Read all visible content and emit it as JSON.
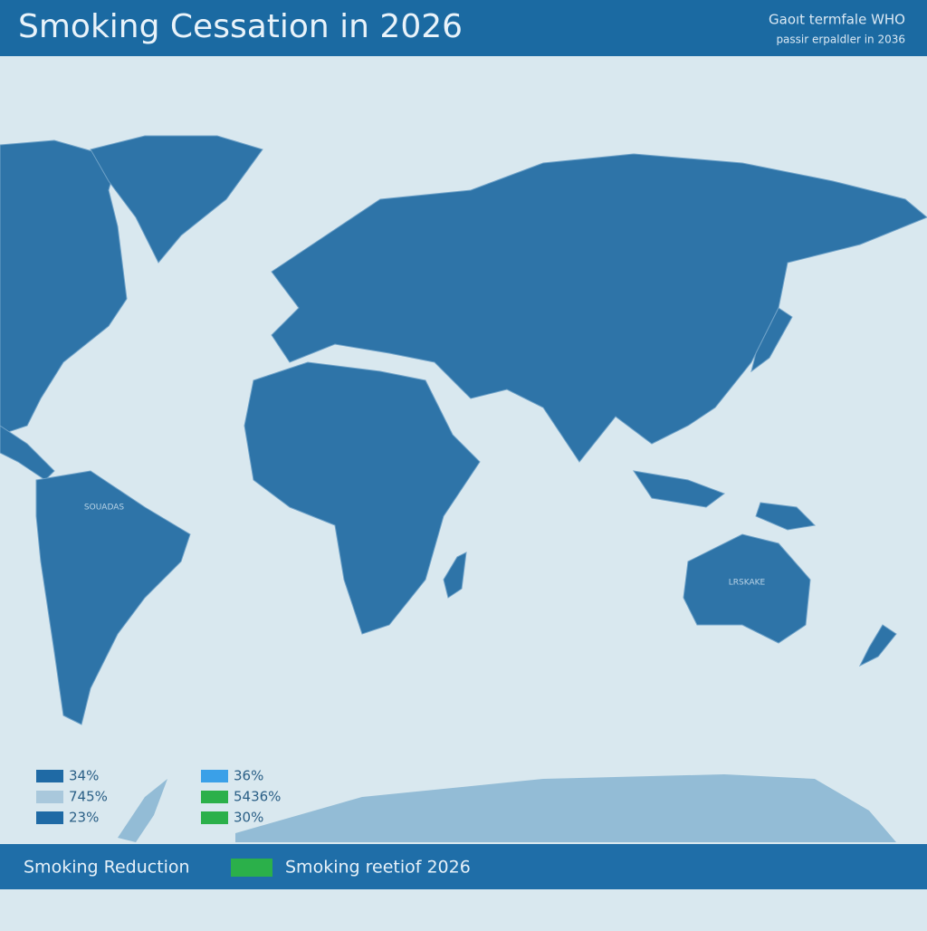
{
  "header": {
    "title": "Smoking Cessation in 2026",
    "source": "Gaoıt termfale WHO",
    "subtitle": "passir erpaldler in 2036"
  },
  "map_labels": [
    "SOUADAS",
    "LRSKAKE"
  ],
  "legend": {
    "left": [
      {
        "label": "34%",
        "color": "#1f6aa5"
      },
      {
        "label": "745%",
        "color": "#a9c8dc"
      },
      {
        "label": "23%",
        "color": "#1f6aa5"
      }
    ],
    "right": [
      {
        "label": "36%",
        "color": "#3aa0e8"
      },
      {
        "label": "5436%",
        "color": "#2bb04a"
      },
      {
        "label": "30%",
        "color": "#2bb04a"
      }
    ]
  },
  "footer": {
    "left": "Smoking Reduction",
    "right": "Smoking reetiof 2026",
    "swatch_color": "#2bb04a"
  }
}
